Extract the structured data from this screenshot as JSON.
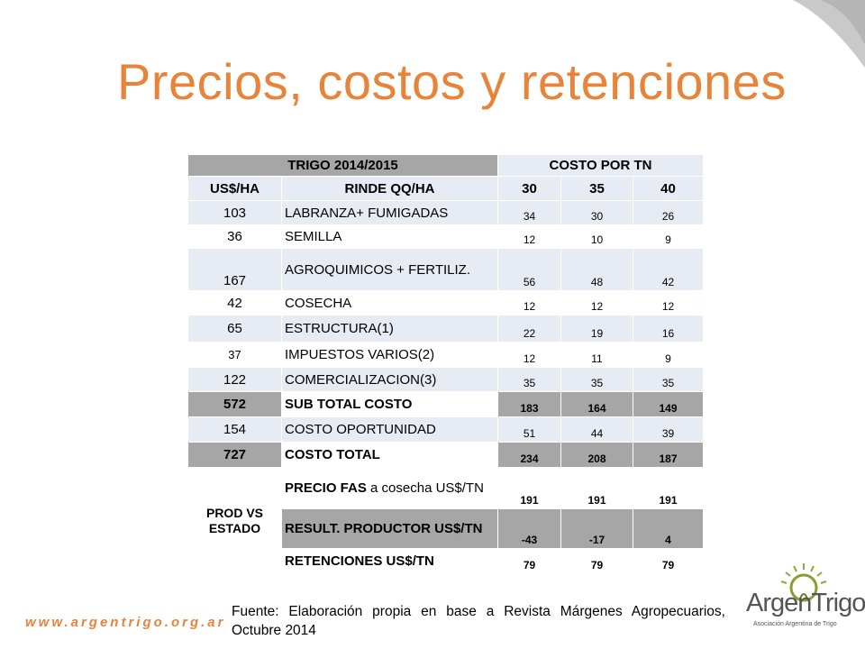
{
  "title": "Precios, costos y retenciones",
  "table": {
    "header1": {
      "crop": "TRIGO 2014/2015",
      "cost": "COSTO POR TN"
    },
    "header2": {
      "usha": "US$/HA",
      "rinde": "RINDE QQ/HA",
      "y1": "30",
      "y2": "35",
      "y3": "40"
    },
    "rows": [
      {
        "ha": "103",
        "concept": "LABRANZA+ FUMIGADAS",
        "v": [
          "34",
          "30",
          "26"
        ]
      },
      {
        "ha": "36",
        "concept": "SEMILLA",
        "v": [
          "12",
          "10",
          "9"
        ]
      },
      {
        "ha": "167",
        "concept": "AGROQUIMICOS + FERTILIZ.",
        "v": [
          "56",
          "48",
          "42"
        ]
      },
      {
        "ha": "42",
        "concept": "COSECHA",
        "v": [
          "12",
          "12",
          "12"
        ]
      },
      {
        "ha": "65",
        "concept": "ESTRUCTURA(1)",
        "v": [
          "22",
          "19",
          "16"
        ]
      },
      {
        "ha": "37",
        "concept": "IMPUESTOS VARIOS(2)",
        "v": [
          "12",
          "11",
          "9"
        ]
      },
      {
        "ha": "122",
        "concept": "COMERCIALIZACION(3)",
        "v": [
          "35",
          "35",
          "35"
        ]
      },
      {
        "ha": "572",
        "concept": "SUB TOTAL COSTO",
        "v": [
          "183",
          "164",
          "149"
        ]
      },
      {
        "ha": "154",
        "concept": "COSTO OPORTUNIDAD",
        "v": [
          "51",
          "44",
          "39"
        ]
      },
      {
        "ha": "727",
        "concept": "COSTO TOTAL",
        "v": [
          "234",
          "208",
          "187"
        ]
      }
    ],
    "prod_label": "PROD VS ESTADO",
    "prod_rows": [
      {
        "concept_bold": "PRECIO FAS",
        "concept_rest": " a cosecha US$/TN",
        "v": [
          "191",
          "191",
          "191"
        ]
      },
      {
        "concept_bold": "RESULT. PRODUCTOR US$/TN",
        "concept_rest": "",
        "v": [
          "-43",
          "-17",
          "4"
        ]
      },
      {
        "concept_bold": "RETENCIONES US$/TN",
        "concept_rest": "",
        "v": [
          "79",
          "79",
          "79"
        ]
      }
    ]
  },
  "source": "Fuente: Elaboración propia en base a Revista Márgenes Agropecuarios, Octubre 2014",
  "website": "www.argentrigo.org.ar",
  "logo": {
    "name": "ArgenTrigo",
    "subtitle": "Asociación Argentina de Trigo"
  },
  "colors": {
    "accent": "#e8833a",
    "light_row": "#e7ebf3",
    "dark_row": "#a6a6a6"
  }
}
